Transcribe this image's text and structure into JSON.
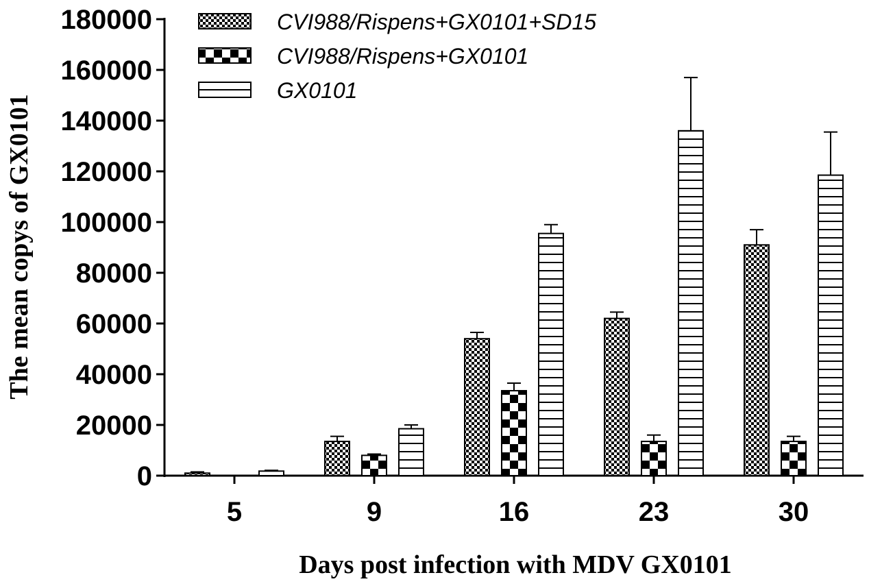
{
  "chart_data": {
    "type": "bar",
    "title": "",
    "xlabel": "Days post infection with MDV GX0101",
    "ylabel": "The mean copys of GX0101",
    "categories": [
      "5",
      "9",
      "16",
      "23",
      "30"
    ],
    "ylim": [
      0,
      180000
    ],
    "yticks": [
      "0",
      "20000",
      "40000",
      "60000",
      "80000",
      "100000",
      "120000",
      "140000",
      "160000",
      "180000"
    ],
    "grid": false,
    "legend_position": "top-left",
    "series": [
      {
        "name": "CVI988/Rispens+GX0101+SD15",
        "pattern": "fine-checker",
        "values": [
          1000,
          13500,
          54000,
          62000,
          91000
        ],
        "errors": [
          500,
          2000,
          2500,
          2500,
          6000
        ]
      },
      {
        "name": "CVI988/Rispens+GX0101",
        "pattern": "coarse-checker",
        "values": [
          0,
          8000,
          33500,
          13500,
          13500
        ],
        "errors": [
          0,
          500,
          3000,
          2500,
          2000
        ]
      },
      {
        "name": "GX0101",
        "pattern": "horizontal-lines",
        "values": [
          1800,
          18500,
          95500,
          136000,
          118500
        ],
        "errors": [
          300,
          1500,
          3500,
          21000,
          17000
        ]
      }
    ]
  }
}
